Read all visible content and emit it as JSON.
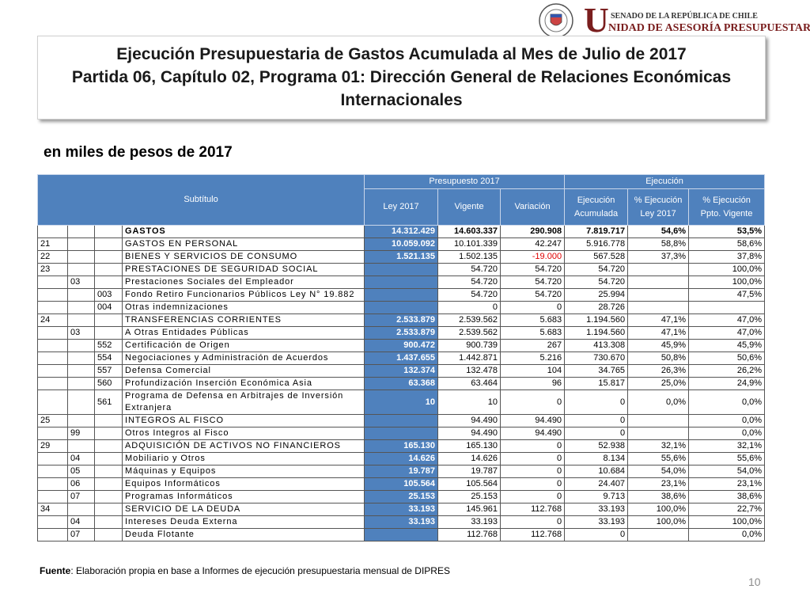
{
  "logo": {
    "letter": "U",
    "top": "SENADO DE LA REPÚBLICA DE CHILE",
    "bottom": "NIDAD DE ASESORÍA PRESUPUESTARIA"
  },
  "header": {
    "title_lines": [
      "Ejecución Presupuestaria de Gastos Acumulada al Mes de Julio de 2017",
      "Partida 06, Capítulo 02, Programa 01: Dirección General de Relaciones Económicas",
      "Internacionales"
    ],
    "subtitle": "en miles de pesos de 2017"
  },
  "table": {
    "group_headers": [
      "Subtítulo",
      "Presupuesto 2017",
      "Ejecución"
    ],
    "columns": [
      "Ley 2017",
      "Vigente",
      "Variación",
      "Ejecución\nAcumulada",
      "% Ejecución\nLey 2017",
      "% Ejecución\nPpto. Vigente"
    ],
    "rows": [
      [
        null,
        null,
        null,
        "GASTOS",
        "14.312.429",
        "14.603.337",
        "290.908",
        "7.819.717",
        "54,6%",
        "53,5%"
      ],
      [
        "21",
        null,
        null,
        "GASTOS EN PERSONAL",
        "10.059.092",
        "10.101.339",
        "42.247",
        "5.916.778",
        "58,8%",
        "58,6%"
      ],
      [
        "22",
        null,
        null,
        "BIENES Y SERVICIOS DE CONSUMO",
        "1.521.135",
        "1.502.135",
        "-19.000",
        "567.528",
        "37,3%",
        "37,8%"
      ],
      [
        "23",
        null,
        null,
        "PRESTACIONES DE SEGURIDAD SOCIAL",
        null,
        "54.720",
        "54.720",
        "54.720",
        null,
        "100,0%"
      ],
      [
        null,
        "03",
        null,
        "Prestaciones Sociales del Empleador",
        null,
        "54.720",
        "54.720",
        "54.720",
        null,
        "100,0%"
      ],
      [
        null,
        null,
        "003",
        "Fondo Retiro Funcionarios Públicos Ley N° 19.882",
        null,
        "54.720",
        "54.720",
        "25.994",
        null,
        "47,5%"
      ],
      [
        null,
        null,
        "004",
        "Otras indemnizaciones",
        null,
        "0",
        "0",
        "28.726",
        null,
        null
      ],
      [
        "24",
        null,
        null,
        "TRANSFERENCIAS CORRIENTES",
        "2.533.879",
        "2.539.562",
        "5.683",
        "1.194.560",
        "47,1%",
        "47,0%"
      ],
      [
        null,
        "03",
        null,
        "A Otras Entidades Públicas",
        "2.533.879",
        "2.539.562",
        "5.683",
        "1.194.560",
        "47,1%",
        "47,0%"
      ],
      [
        null,
        null,
        "552",
        "Certificación de Origen",
        "900.472",
        "900.739",
        "267",
        "413.308",
        "45,9%",
        "45,9%"
      ],
      [
        null,
        null,
        "554",
        "Negociaciones y Administración de Acuerdos",
        "1.437.655",
        "1.442.871",
        "5.216",
        "730.670",
        "50,8%",
        "50,6%"
      ],
      [
        null,
        null,
        "557",
        "Defensa Comercial",
        "132.374",
        "132.478",
        "104",
        "34.765",
        "26,3%",
        "26,2%"
      ],
      [
        null,
        null,
        "560",
        "Profundización Inserción Económica Asia",
        "63.368",
        "63.464",
        "96",
        "15.817",
        "25,0%",
        "24,9%"
      ],
      [
        null,
        null,
        "561",
        "Programa de Defensa en Arbitrajes de Inversión Extranjera",
        "10",
        "10",
        "0",
        "0",
        "0,0%",
        "0,0%"
      ],
      [
        "25",
        null,
        null,
        "INTEGROS AL FISCO",
        null,
        "94.490",
        "94.490",
        "0",
        null,
        "0,0%"
      ],
      [
        null,
        "99",
        null,
        "Otros Integros al Fisco",
        null,
        "94.490",
        "94.490",
        "0",
        null,
        "0,0%"
      ],
      [
        "29",
        null,
        null,
        "ADQUISICIÓN DE ACTIVOS NO FINANCIEROS",
        "165.130",
        "165.130",
        "0",
        "52.938",
        "32,1%",
        "32,1%"
      ],
      [
        null,
        "04",
        null,
        "Mobiliario y Otros",
        "14.626",
        "14.626",
        "0",
        "8.134",
        "55,6%",
        "55,6%"
      ],
      [
        null,
        "05",
        null,
        "Máquinas y Equipos",
        "19.787",
        "19.787",
        "0",
        "10.684",
        "54,0%",
        "54,0%"
      ],
      [
        null,
        "06",
        null,
        "Equipos Informáticos",
        "105.564",
        "105.564",
        "0",
        "24.407",
        "23,1%",
        "23,1%"
      ],
      [
        null,
        "07",
        null,
        "Programas Informáticos",
        "25.153",
        "25.153",
        "0",
        "9.713",
        "38,6%",
        "38,6%"
      ],
      [
        "34",
        null,
        null,
        "SERVICIO DE LA DEUDA",
        "33.193",
        "145.961",
        "112.768",
        "33.193",
        "100,0%",
        "22,7%"
      ],
      [
        null,
        "04",
        null,
        "Intereses Deuda Externa",
        "33.193",
        "33.193",
        "0",
        "33.193",
        "100,0%",
        "100,0%"
      ],
      [
        null,
        "07",
        null,
        "Deuda Flotante",
        null,
        "112.768",
        "112.768",
        "0",
        null,
        "0,0%"
      ]
    ]
  },
  "footer": {
    "source_label": "Fuente",
    "source_text": ": Elaboración propia en base  a Informes de ejecución presupuestaria mensual de DIPRES",
    "page": "10"
  }
}
